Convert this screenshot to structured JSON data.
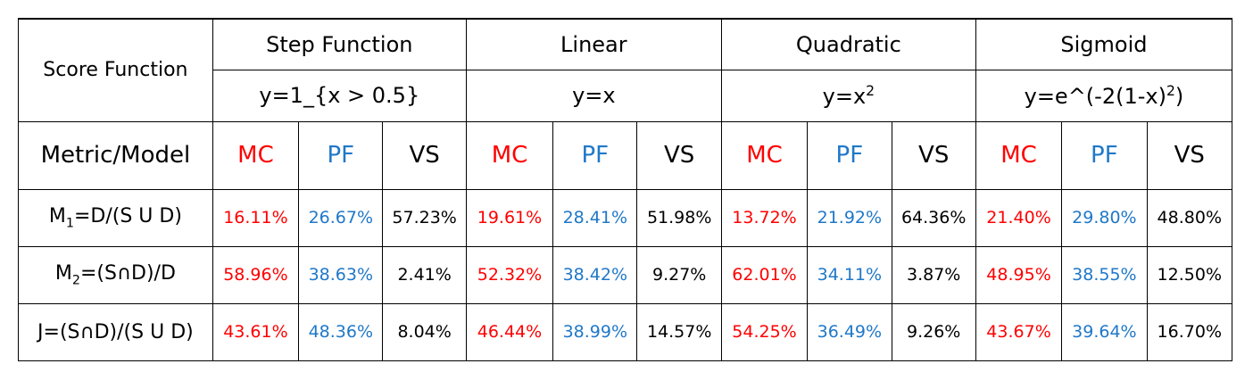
{
  "header": {
    "score_function": "Score Function",
    "metric_model": "Metric/Model",
    "functions": [
      {
        "name": "Step Function",
        "formula": "y=1_{x > 0.5}"
      },
      {
        "name": "Linear",
        "formula": "y=x"
      },
      {
        "name": "Quadratic",
        "formula_base": "y=x",
        "formula_sup": "2"
      },
      {
        "name": "Sigmoid",
        "formula_pre": "y=e^(-2(1-x)",
        "formula_sup": "2",
        "formula_post": ")"
      }
    ],
    "models": [
      "MC",
      "PF",
      "VS"
    ]
  },
  "rows": [
    {
      "metric": {
        "pre": "M",
        "sub": "1",
        "post": "=D/(S U D)"
      },
      "values": [
        "16.11%",
        "26.67%",
        "57.23%",
        "19.61%",
        "28.41%",
        "51.98%",
        "13.72%",
        "21.92%",
        "64.36%",
        "21.40%",
        "29.80%",
        "48.80%"
      ]
    },
    {
      "metric": {
        "pre": "M",
        "sub": "2",
        "post": "=(S∩D)/D"
      },
      "values": [
        "58.96%",
        "38.63%",
        "2.41%",
        "52.32%",
        "38.42%",
        "9.27%",
        "62.01%",
        "34.11%",
        "3.87%",
        "48.95%",
        "38.55%",
        "12.50%"
      ]
    },
    {
      "metric": {
        "pre": "J=(S∩D)/(S U D)",
        "sub": "",
        "post": ""
      },
      "values": [
        "43.61%",
        "48.36%",
        "8.04%",
        "46.44%",
        "38.99%",
        "14.57%",
        "54.25%",
        "36.49%",
        "9.26%",
        "43.67%",
        "39.64%",
        "16.70%"
      ]
    }
  ],
  "colors": {
    "MC": "#ff0000",
    "PF": "#1f78c8",
    "VS": "#000000"
  }
}
